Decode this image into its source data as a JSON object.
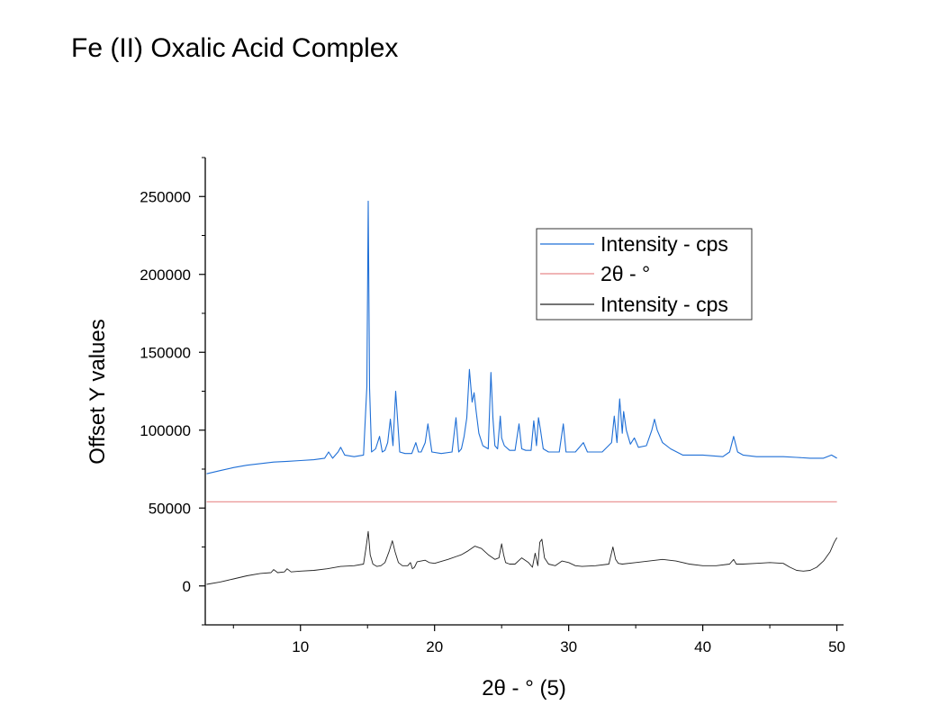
{
  "chart_data": {
    "type": "line",
    "title": "Fe (II) Oxalic Acid Complex",
    "xlabel": "2θ - ° (5)",
    "ylabel": "Offset Y values",
    "xlim": [
      2.9,
      50.5
    ],
    "ylim": [
      -25000,
      275000
    ],
    "xticks": [
      10,
      20,
      30,
      40,
      50
    ],
    "yticks": [
      0,
      50000,
      100000,
      150000,
      200000,
      250000
    ],
    "grid": false,
    "legend_position": "top-right",
    "series": [
      {
        "name": "Intensity - cps",
        "color": "#1f6fd6",
        "x": [
          3,
          4,
          5,
          6,
          7,
          8,
          9,
          10,
          11,
          11.8,
          12.1,
          12.4,
          12.8,
          13.0,
          13.3,
          14,
          14.7,
          14.95,
          15.05,
          15.15,
          15.3,
          15.6,
          15.9,
          16.1,
          16.3,
          16.5,
          16.7,
          16.9,
          17.1,
          17.4,
          17.8,
          18.3,
          18.6,
          18.8,
          19.0,
          19.3,
          19.5,
          19.8,
          20.5,
          21.3,
          21.6,
          21.8,
          22.0,
          22.2,
          22.4,
          22.6,
          22.8,
          22.95,
          23.1,
          23.3,
          23.6,
          24.0,
          24.2,
          24.35,
          24.5,
          24.7,
          24.9,
          25.0,
          25.2,
          25.6,
          26.0,
          26.3,
          26.5,
          26.8,
          27.2,
          27.4,
          27.6,
          27.75,
          27.9,
          28.1,
          28.5,
          29.3,
          29.6,
          29.8,
          30.5,
          30.9,
          31.1,
          31.4,
          32.5,
          33.2,
          33.4,
          33.6,
          33.8,
          34.0,
          34.1,
          34.3,
          34.6,
          34.9,
          35.2,
          35.8,
          36.2,
          36.4,
          36.6,
          37.0,
          37.6,
          38.5,
          40.0,
          41.5,
          42.0,
          42.3,
          42.6,
          43.0,
          44.0,
          45.0,
          46.0,
          47.0,
          48.0,
          49.0,
          49.6,
          50.0
        ],
        "y": [
          72000,
          74000,
          76000,
          77500,
          78500,
          79500,
          80000,
          80500,
          81000,
          82000,
          86000,
          82000,
          86000,
          89000,
          84000,
          83000,
          84000,
          128000,
          247000,
          127000,
          86000,
          88000,
          96000,
          86000,
          87000,
          92000,
          107000,
          90000,
          125000,
          86000,
          85000,
          85000,
          92000,
          86000,
          86000,
          92000,
          104000,
          86000,
          85000,
          86000,
          108000,
          86000,
          88000,
          96000,
          108000,
          139000,
          118000,
          124000,
          112000,
          98000,
          90000,
          88000,
          137000,
          108000,
          90000,
          88000,
          109000,
          95000,
          90000,
          87000,
          87000,
          104000,
          88000,
          87000,
          87000,
          106000,
          90000,
          108000,
          100000,
          88000,
          86000,
          86000,
          104000,
          86000,
          86000,
          90000,
          92000,
          86000,
          86000,
          92000,
          109000,
          92000,
          120000,
          98000,
          112000,
          100000,
          91000,
          95000,
          89000,
          90000,
          100000,
          107000,
          100000,
          92000,
          88000,
          84000,
          84000,
          83000,
          86000,
          96000,
          86000,
          84000,
          83000,
          83000,
          83000,
          82500,
          82000,
          82000,
          84000,
          82000
        ]
      },
      {
        "name": "2θ - °",
        "color": "#e8898a",
        "x": [
          3,
          50
        ],
        "y": [
          54000,
          54000
        ]
      },
      {
        "name": "Intensity - cps",
        "color": "#222222",
        "x": [
          3,
          4,
          5,
          6,
          7,
          7.8,
          8.0,
          8.3,
          8.8,
          9.0,
          9.3,
          10,
          11,
          12,
          13,
          14,
          14.7,
          14.9,
          15.05,
          15.2,
          15.4,
          15.7,
          16.0,
          16.3,
          16.6,
          16.85,
          17.05,
          17.3,
          17.6,
          18.0,
          18.2,
          18.35,
          18.5,
          18.7,
          19.0,
          19.3,
          19.6,
          20.0,
          21.0,
          22.0,
          22.5,
          23.0,
          23.5,
          24.0,
          24.5,
          24.8,
          25.0,
          25.15,
          25.3,
          25.6,
          26.0,
          26.5,
          27.0,
          27.3,
          27.5,
          27.7,
          27.85,
          28.0,
          28.2,
          28.5,
          29.0,
          29.5,
          30.0,
          30.5,
          31.0,
          32.0,
          33.0,
          33.3,
          33.5,
          33.7,
          34.0,
          35.0,
          36.0,
          37.0,
          38.0,
          39.0,
          40.0,
          41.0,
          42.0,
          42.3,
          42.5,
          43.0,
          44.0,
          45.0,
          46.0,
          46.5,
          47.0,
          47.5,
          48.0,
          48.5,
          49.0,
          49.5,
          49.8,
          50.0
        ],
        "y": [
          1000,
          2500,
          4500,
          6500,
          8000,
          8500,
          10500,
          8500,
          9000,
          11000,
          9000,
          9500,
          10000,
          11000,
          12500,
          13000,
          14000,
          25000,
          35000,
          20000,
          14000,
          12500,
          13000,
          15000,
          22000,
          29000,
          22000,
          15000,
          13000,
          13000,
          15000,
          11000,
          12000,
          15500,
          16000,
          16500,
          15000,
          14500,
          17000,
          20000,
          22500,
          25500,
          24000,
          20000,
          17000,
          18000,
          27000,
          20000,
          15000,
          14000,
          14000,
          18000,
          15000,
          12000,
          21000,
          13000,
          28000,
          30000,
          18000,
          14000,
          13000,
          16000,
          15000,
          13000,
          12500,
          13000,
          14000,
          25000,
          17000,
          14500,
          14000,
          15000,
          16000,
          17000,
          16000,
          14000,
          13000,
          13000,
          14000,
          17000,
          14000,
          14000,
          14500,
          15000,
          14500,
          12000,
          10000,
          9500,
          10000,
          12000,
          16000,
          22000,
          28000,
          31000
        ]
      }
    ]
  }
}
